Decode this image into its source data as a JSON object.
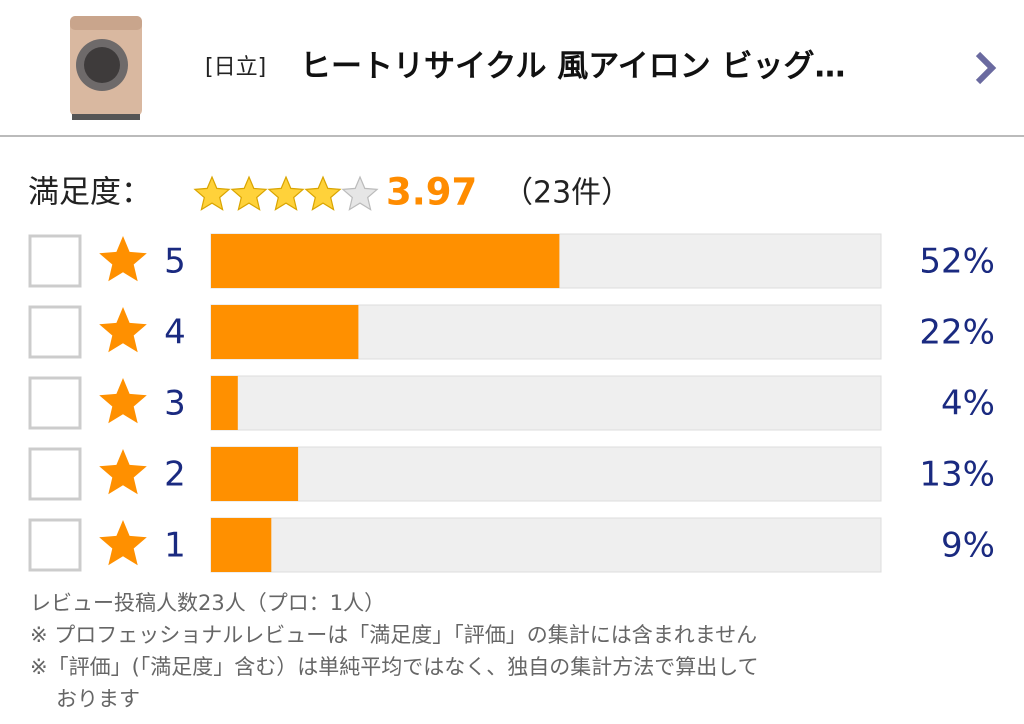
{
  "header": {
    "brand": "[日立]",
    "title": "ヒートリサイクル 風アイロン ビッグ…"
  },
  "chart_data": {
    "type": "bar",
    "orientation": "horizontal",
    "summary": {
      "label": "満足度：",
      "score": 3.97,
      "count": "（23件）"
    },
    "categories": [
      5,
      4,
      3,
      2,
      1
    ],
    "values": [
      52,
      22,
      4,
      13,
      9
    ],
    "value_labels": [
      "52%",
      "22%",
      "4%",
      "13%",
      "9%"
    ],
    "xlim": [
      0,
      100
    ],
    "color": "#ff9000"
  },
  "notes": [
    [
      "レビュー投稿人数23人（プロ：1人）"
    ],
    [
      "※ プロフェッショナルレビューは「満足度」「評価」の集計には含まれません"
    ],
    [
      "※「評価」(「満足度」含む）は単純平均ではなく、独自の集計方法で算出して",
      "おります"
    ]
  ]
}
